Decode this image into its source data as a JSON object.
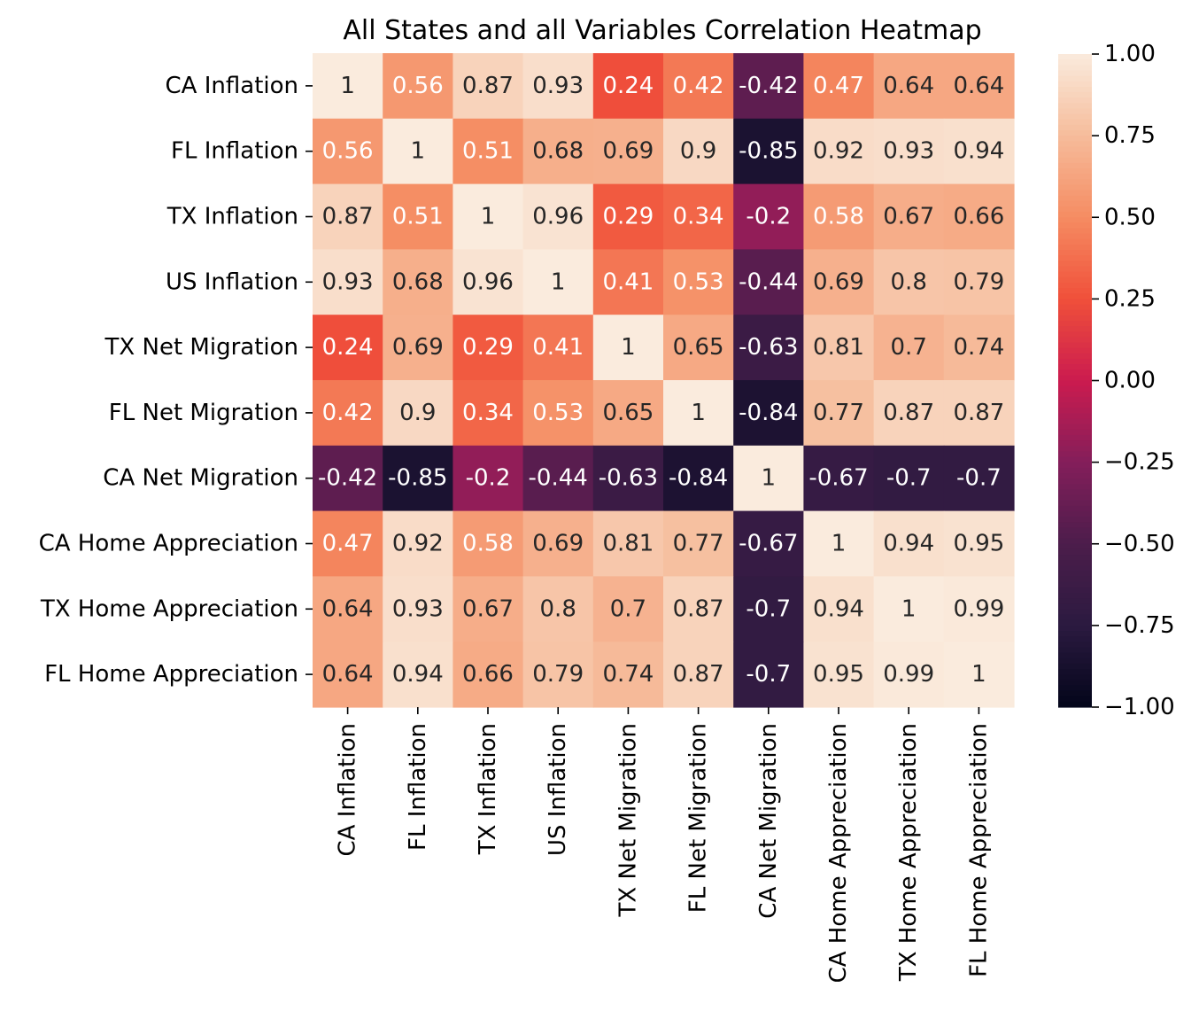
{
  "chart_data": {
    "type": "heatmap",
    "title": "All States and all Variables Correlation Heatmap",
    "xlabel": "",
    "ylabel": "",
    "rows": [
      "CA Inflation",
      "FL Inflation",
      "TX Inflation",
      "US Inflation",
      "TX Net Migration",
      "FL Net Migration",
      "CA Net Migration",
      "CA Home Appreciation",
      "TX Home Appreciation",
      "FL Home Appreciation"
    ],
    "columns": [
      "CA Inflation",
      "FL Inflation",
      "TX Inflation",
      "US Inflation",
      "TX Net Migration",
      "FL Net Migration",
      "CA Net Migration",
      "CA Home Appreciation",
      "TX Home Appreciation",
      "FL Home Appreciation"
    ],
    "values": [
      [
        1,
        0.56,
        0.87,
        0.93,
        0.24,
        0.42,
        -0.42,
        0.47,
        0.64,
        0.64
      ],
      [
        0.56,
        1,
        0.51,
        0.68,
        0.69,
        0.9,
        -0.85,
        0.92,
        0.93,
        0.94
      ],
      [
        0.87,
        0.51,
        1,
        0.96,
        0.29,
        0.34,
        -0.2,
        0.58,
        0.67,
        0.66
      ],
      [
        0.93,
        0.68,
        0.96,
        1,
        0.41,
        0.53,
        -0.44,
        0.69,
        0.8,
        0.79
      ],
      [
        0.24,
        0.69,
        0.29,
        0.41,
        1,
        0.65,
        -0.63,
        0.81,
        0.7,
        0.74
      ],
      [
        0.42,
        0.9,
        0.34,
        0.53,
        0.65,
        1,
        -0.84,
        0.77,
        0.87,
        0.87
      ],
      [
        -0.42,
        -0.85,
        -0.2,
        -0.44,
        -0.63,
        -0.84,
        1,
        -0.67,
        -0.7,
        -0.7
      ],
      [
        0.47,
        0.92,
        0.58,
        0.69,
        0.81,
        0.77,
        -0.67,
        1,
        0.94,
        0.95
      ],
      [
        0.64,
        0.93,
        0.67,
        0.8,
        0.7,
        0.87,
        -0.7,
        0.94,
        1,
        0.99
      ],
      [
        0.64,
        0.94,
        0.66,
        0.79,
        0.74,
        0.87,
        -0.7,
        0.95,
        0.99,
        1
      ]
    ],
    "annotations": [
      [
        "1",
        "0.56",
        "0.87",
        "0.93",
        "0.24",
        "0.42",
        "-0.42",
        "0.47",
        "0.64",
        "0.64"
      ],
      [
        "0.56",
        "1",
        "0.51",
        "0.68",
        "0.69",
        "0.9",
        "-0.85",
        "0.92",
        "0.93",
        "0.94"
      ],
      [
        "0.87",
        "0.51",
        "1",
        "0.96",
        "0.29",
        "0.34",
        "-0.2",
        "0.58",
        "0.67",
        "0.66"
      ],
      [
        "0.93",
        "0.68",
        "0.96",
        "1",
        "0.41",
        "0.53",
        "-0.44",
        "0.69",
        "0.8",
        "0.79"
      ],
      [
        "0.24",
        "0.69",
        "0.29",
        "0.41",
        "1",
        "0.65",
        "-0.63",
        "0.81",
        "0.7",
        "0.74"
      ],
      [
        "0.42",
        "0.9",
        "0.34",
        "0.53",
        "0.65",
        "1",
        "-0.84",
        "0.77",
        "0.87",
        "0.87"
      ],
      [
        "-0.42",
        "-0.85",
        "-0.2",
        "-0.44",
        "-0.63",
        "-0.84",
        "1",
        "-0.67",
        "-0.7",
        "-0.7"
      ],
      [
        "0.47",
        "0.92",
        "0.58",
        "0.69",
        "0.81",
        "0.77",
        "-0.67",
        "1",
        "0.94",
        "0.95"
      ],
      [
        "0.64",
        "0.93",
        "0.67",
        "0.8",
        "0.7",
        "0.87",
        "-0.7",
        "0.94",
        "1",
        "0.99"
      ],
      [
        "0.64",
        "0.94",
        "0.66",
        "0.79",
        "0.74",
        "0.87",
        "-0.7",
        "0.95",
        "0.99",
        "1"
      ]
    ],
    "vmin": -1.0,
    "vmax": 1.0,
    "colormap": "rocket",
    "colorbar": {
      "ticks": [
        1.0,
        0.75,
        0.5,
        0.25,
        0.0,
        -0.25,
        -0.5,
        -0.75,
        -1.0
      ],
      "tick_labels": [
        "1.00",
        "0.75",
        "0.50",
        "0.25",
        "0.00",
        "−0.25",
        "−0.50",
        "−0.75",
        "−1.00"
      ],
      "placement": "right"
    },
    "colormap_stops": [
      [
        0.0,
        "#03051a"
      ],
      [
        0.125,
        "#2b1a40"
      ],
      [
        0.25,
        "#4c1d4b"
      ],
      [
        0.375,
        "#841e5a"
      ],
      [
        0.5,
        "#cb1b4f"
      ],
      [
        0.625,
        "#f0503a"
      ],
      [
        0.75,
        "#f58c62"
      ],
      [
        0.875,
        "#f6bc9b"
      ],
      [
        1.0,
        "#faebdd"
      ]
    ],
    "annotation_light_color": "#ffffff",
    "annotation_dark_color": "#262626",
    "grid": false
  }
}
